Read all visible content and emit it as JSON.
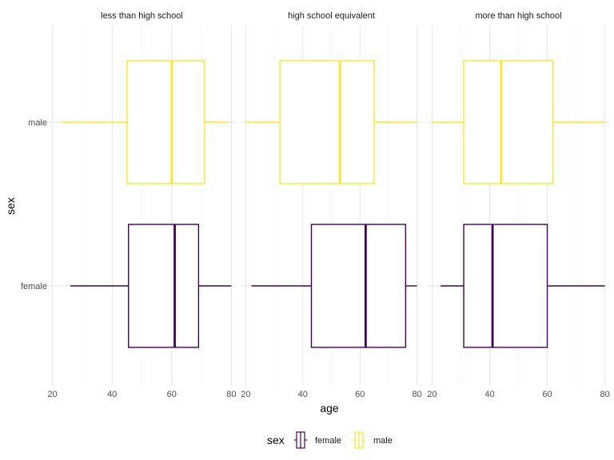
{
  "chart_data": {
    "type": "boxplot",
    "orientation": "horizontal",
    "facet_var": "",
    "panels": [
      {
        "label": "less than high school",
        "boxes": [
          {
            "sex": "male",
            "min": 23,
            "q1": 45,
            "median": 60,
            "q3": 71,
            "max": 79
          },
          {
            "sex": "female",
            "min": 26,
            "q1": 45.5,
            "median": 61,
            "q3": 69,
            "max": 80
          }
        ]
      },
      {
        "label": "high school equivalent",
        "boxes": [
          {
            "sex": "male",
            "min": 20,
            "q1": 32,
            "median": 53,
            "q3": 65,
            "max": 80
          },
          {
            "sex": "female",
            "min": 22,
            "q1": 43,
            "median": 62,
            "q3": 76,
            "max": 80
          }
        ]
      },
      {
        "label": "more than high school",
        "boxes": [
          {
            "sex": "male",
            "min": 20,
            "q1": 31,
            "median": 44,
            "q3": 62,
            "max": 80
          },
          {
            "sex": "female",
            "min": 23,
            "q1": 31,
            "median": 41,
            "q3": 60,
            "max": 80
          }
        ]
      }
    ],
    "categories": [
      "female",
      "male"
    ],
    "x_ticks": [
      20,
      40,
      60,
      80
    ],
    "xlim": [
      18.5,
      81.5
    ],
    "xlabel": "age",
    "ylabel": "sex",
    "legend": {
      "title": "sex",
      "position": "bottom",
      "entries": [
        {
          "label": "female",
          "color": "#440154"
        },
        {
          "label": "male",
          "color": "#FDE725"
        }
      ]
    },
    "grid": true
  }
}
